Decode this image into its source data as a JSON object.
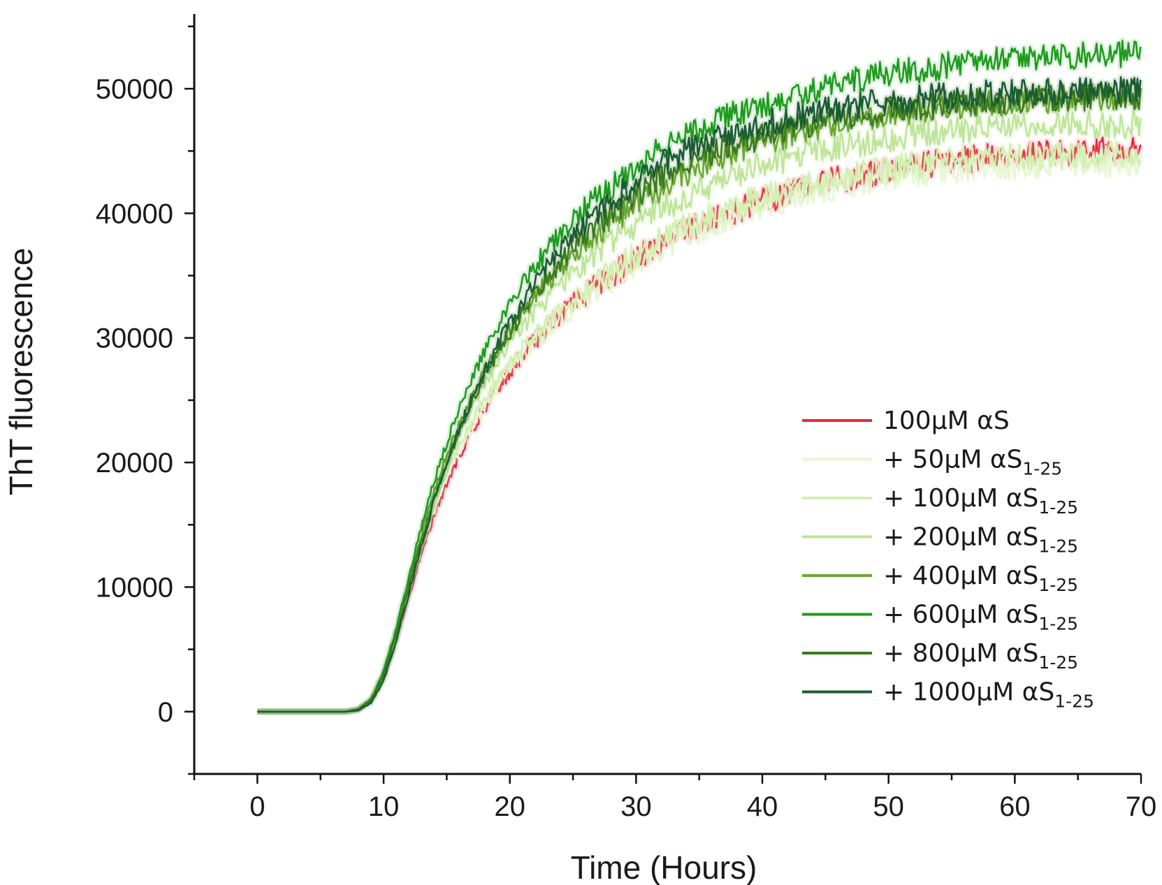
{
  "chart_data": {
    "type": "line",
    "xlabel": "Time (Hours)",
    "ylabel": "ThT fluorescence",
    "xlim": [
      -5,
      70
    ],
    "ylim": [
      -5000,
      56000
    ],
    "x_ticks": [
      0,
      10,
      20,
      30,
      40,
      50,
      60,
      70
    ],
    "x_tick_labels": [
      "0",
      "10",
      "20",
      "30",
      "40",
      "50",
      "60",
      "70"
    ],
    "y_ticks": [
      0,
      10000,
      20000,
      30000,
      40000,
      50000
    ],
    "y_tick_labels": [
      "0",
      "10000",
      "20000",
      "30000",
      "40000",
      "50000"
    ],
    "grid": false,
    "legend_position": "right-center",
    "x": [
      0,
      2,
      4,
      6,
      7,
      8,
      9,
      10,
      11,
      12,
      13,
      14,
      15,
      16,
      17,
      18,
      19,
      20,
      22,
      24,
      26,
      28,
      30,
      32,
      34,
      36,
      38,
      40,
      42,
      44,
      46,
      48,
      50,
      52,
      54,
      56,
      58,
      60,
      62,
      64,
      66,
      68,
      70
    ],
    "series": [
      {
        "name": "100µM αS",
        "legend_main": "100µM αS",
        "legend_sub": "",
        "color": "#e8283c",
        "values": [
          0,
          0,
          0,
          0,
          0,
          200,
          900,
          2800,
          5800,
          9200,
          12600,
          15700,
          18400,
          20600,
          22600,
          24400,
          26000,
          27400,
          29800,
          31800,
          33500,
          35000,
          36300,
          37500,
          38600,
          39500,
          40300,
          41000,
          41700,
          42200,
          42700,
          43100,
          43500,
          43800,
          44100,
          44300,
          44500,
          44700,
          44800,
          44900,
          45000,
          45100,
          45200
        ]
      },
      {
        "name": "+ 50µM αS1-25",
        "legend_main": "+ 50µM αS",
        "legend_sub": "1-25",
        "color": "#e6f7d2",
        "values": [
          0,
          0,
          0,
          0,
          0,
          200,
          900,
          2800,
          5900,
          9500,
          13000,
          16100,
          18800,
          21000,
          22900,
          24600,
          26100,
          27500,
          29700,
          31600,
          33200,
          34600,
          35900,
          37100,
          38200,
          39100,
          39900,
          40600,
          41200,
          41700,
          42200,
          42600,
          42900,
          43200,
          43400,
          43600,
          43700,
          43800,
          43900,
          43900,
          44000,
          44000,
          44000
        ]
      },
      {
        "name": "+ 100µM αS1-25",
        "legend_main": "+ 100µM αS",
        "legend_sub": "1-25",
        "color": "#d2f0b0",
        "values": [
          0,
          0,
          0,
          0,
          0,
          200,
          900,
          2800,
          6000,
          9600,
          13200,
          16400,
          19100,
          21300,
          23300,
          25000,
          26500,
          27900,
          30200,
          32100,
          33800,
          35300,
          36600,
          37800,
          38900,
          39800,
          40600,
          41300,
          41900,
          42400,
          42900,
          43300,
          43600,
          43900,
          44100,
          44300,
          44400,
          44500,
          44600,
          44600,
          44700,
          44700,
          44700
        ]
      },
      {
        "name": "+ 200µM αS1-25",
        "legend_main": "+ 200µM αS",
        "legend_sub": "1-25",
        "color": "#bde597",
        "values": [
          0,
          0,
          0,
          0,
          0,
          200,
          1000,
          3000,
          6300,
          10100,
          13900,
          17200,
          20000,
          22400,
          24500,
          26400,
          28000,
          29500,
          32100,
          34200,
          36100,
          37700,
          39100,
          40300,
          41400,
          42300,
          43100,
          43800,
          44400,
          44900,
          45300,
          45700,
          46000,
          46300,
          46500,
          46700,
          46800,
          46900,
          47000,
          47000,
          47100,
          47100,
          47100
        ]
      },
      {
        "name": "+ 400µM αS1-25",
        "legend_main": "+ 400µM αS",
        "legend_sub": "1-25",
        "color": "#6aa832",
        "values": [
          0,
          0,
          0,
          0,
          0,
          200,
          1000,
          3100,
          6500,
          10400,
          14300,
          17700,
          20600,
          23100,
          25300,
          27300,
          29000,
          30600,
          33300,
          35600,
          37600,
          39300,
          40800,
          42100,
          43200,
          44200,
          45000,
          45700,
          46300,
          46800,
          47300,
          47700,
          48000,
          48300,
          48500,
          48700,
          48900,
          49000,
          49100,
          49200,
          49200,
          49300,
          49300
        ]
      },
      {
        "name": "+ 600µM αS1-25",
        "legend_main": "+ 600µM αS",
        "legend_sub": "1-25",
        "color": "#1e9c1e",
        "values": [
          0,
          0,
          0,
          0,
          0,
          200,
          1000,
          3200,
          6700,
          10800,
          14900,
          18500,
          21600,
          24300,
          26700,
          28900,
          30900,
          32700,
          35800,
          38300,
          40400,
          42200,
          43800,
          45100,
          46200,
          47200,
          48000,
          48800,
          49400,
          49900,
          50400,
          50800,
          51200,
          51500,
          51800,
          52000,
          52200,
          52400,
          52500,
          52600,
          52700,
          52800,
          52900
        ]
      },
      {
        "name": "+ 800µM αS1-25",
        "legend_main": "+ 800µM αS",
        "legend_sub": "1-25",
        "color": "#3a7a1c",
        "values": [
          0,
          0,
          0,
          0,
          0,
          200,
          900,
          2900,
          6200,
          10000,
          13800,
          17100,
          20000,
          22500,
          24800,
          26900,
          28800,
          30500,
          33500,
          36000,
          38100,
          39900,
          41500,
          42800,
          43900,
          44800,
          45600,
          46200,
          46800,
          47300,
          47700,
          48000,
          48300,
          48500,
          48700,
          48900,
          49000,
          49100,
          49200,
          49300,
          49300,
          49400,
          49400
        ]
      },
      {
        "name": "+ 1000µM αS1-25",
        "legend_main": "+ 1000µM αS",
        "legend_sub": "1-25",
        "color": "#1a5c32",
        "values": [
          0,
          0,
          0,
          0,
          0,
          100,
          700,
          2500,
          5700,
          9500,
          13400,
          16900,
          20000,
          22700,
          25200,
          27400,
          29400,
          31200,
          34400,
          37000,
          39200,
          41000,
          42600,
          43900,
          45000,
          45900,
          46600,
          47200,
          47700,
          48100,
          48500,
          48800,
          49000,
          49200,
          49400,
          49500,
          49600,
          49700,
          49800,
          49800,
          49900,
          49900,
          50000
        ]
      }
    ]
  }
}
